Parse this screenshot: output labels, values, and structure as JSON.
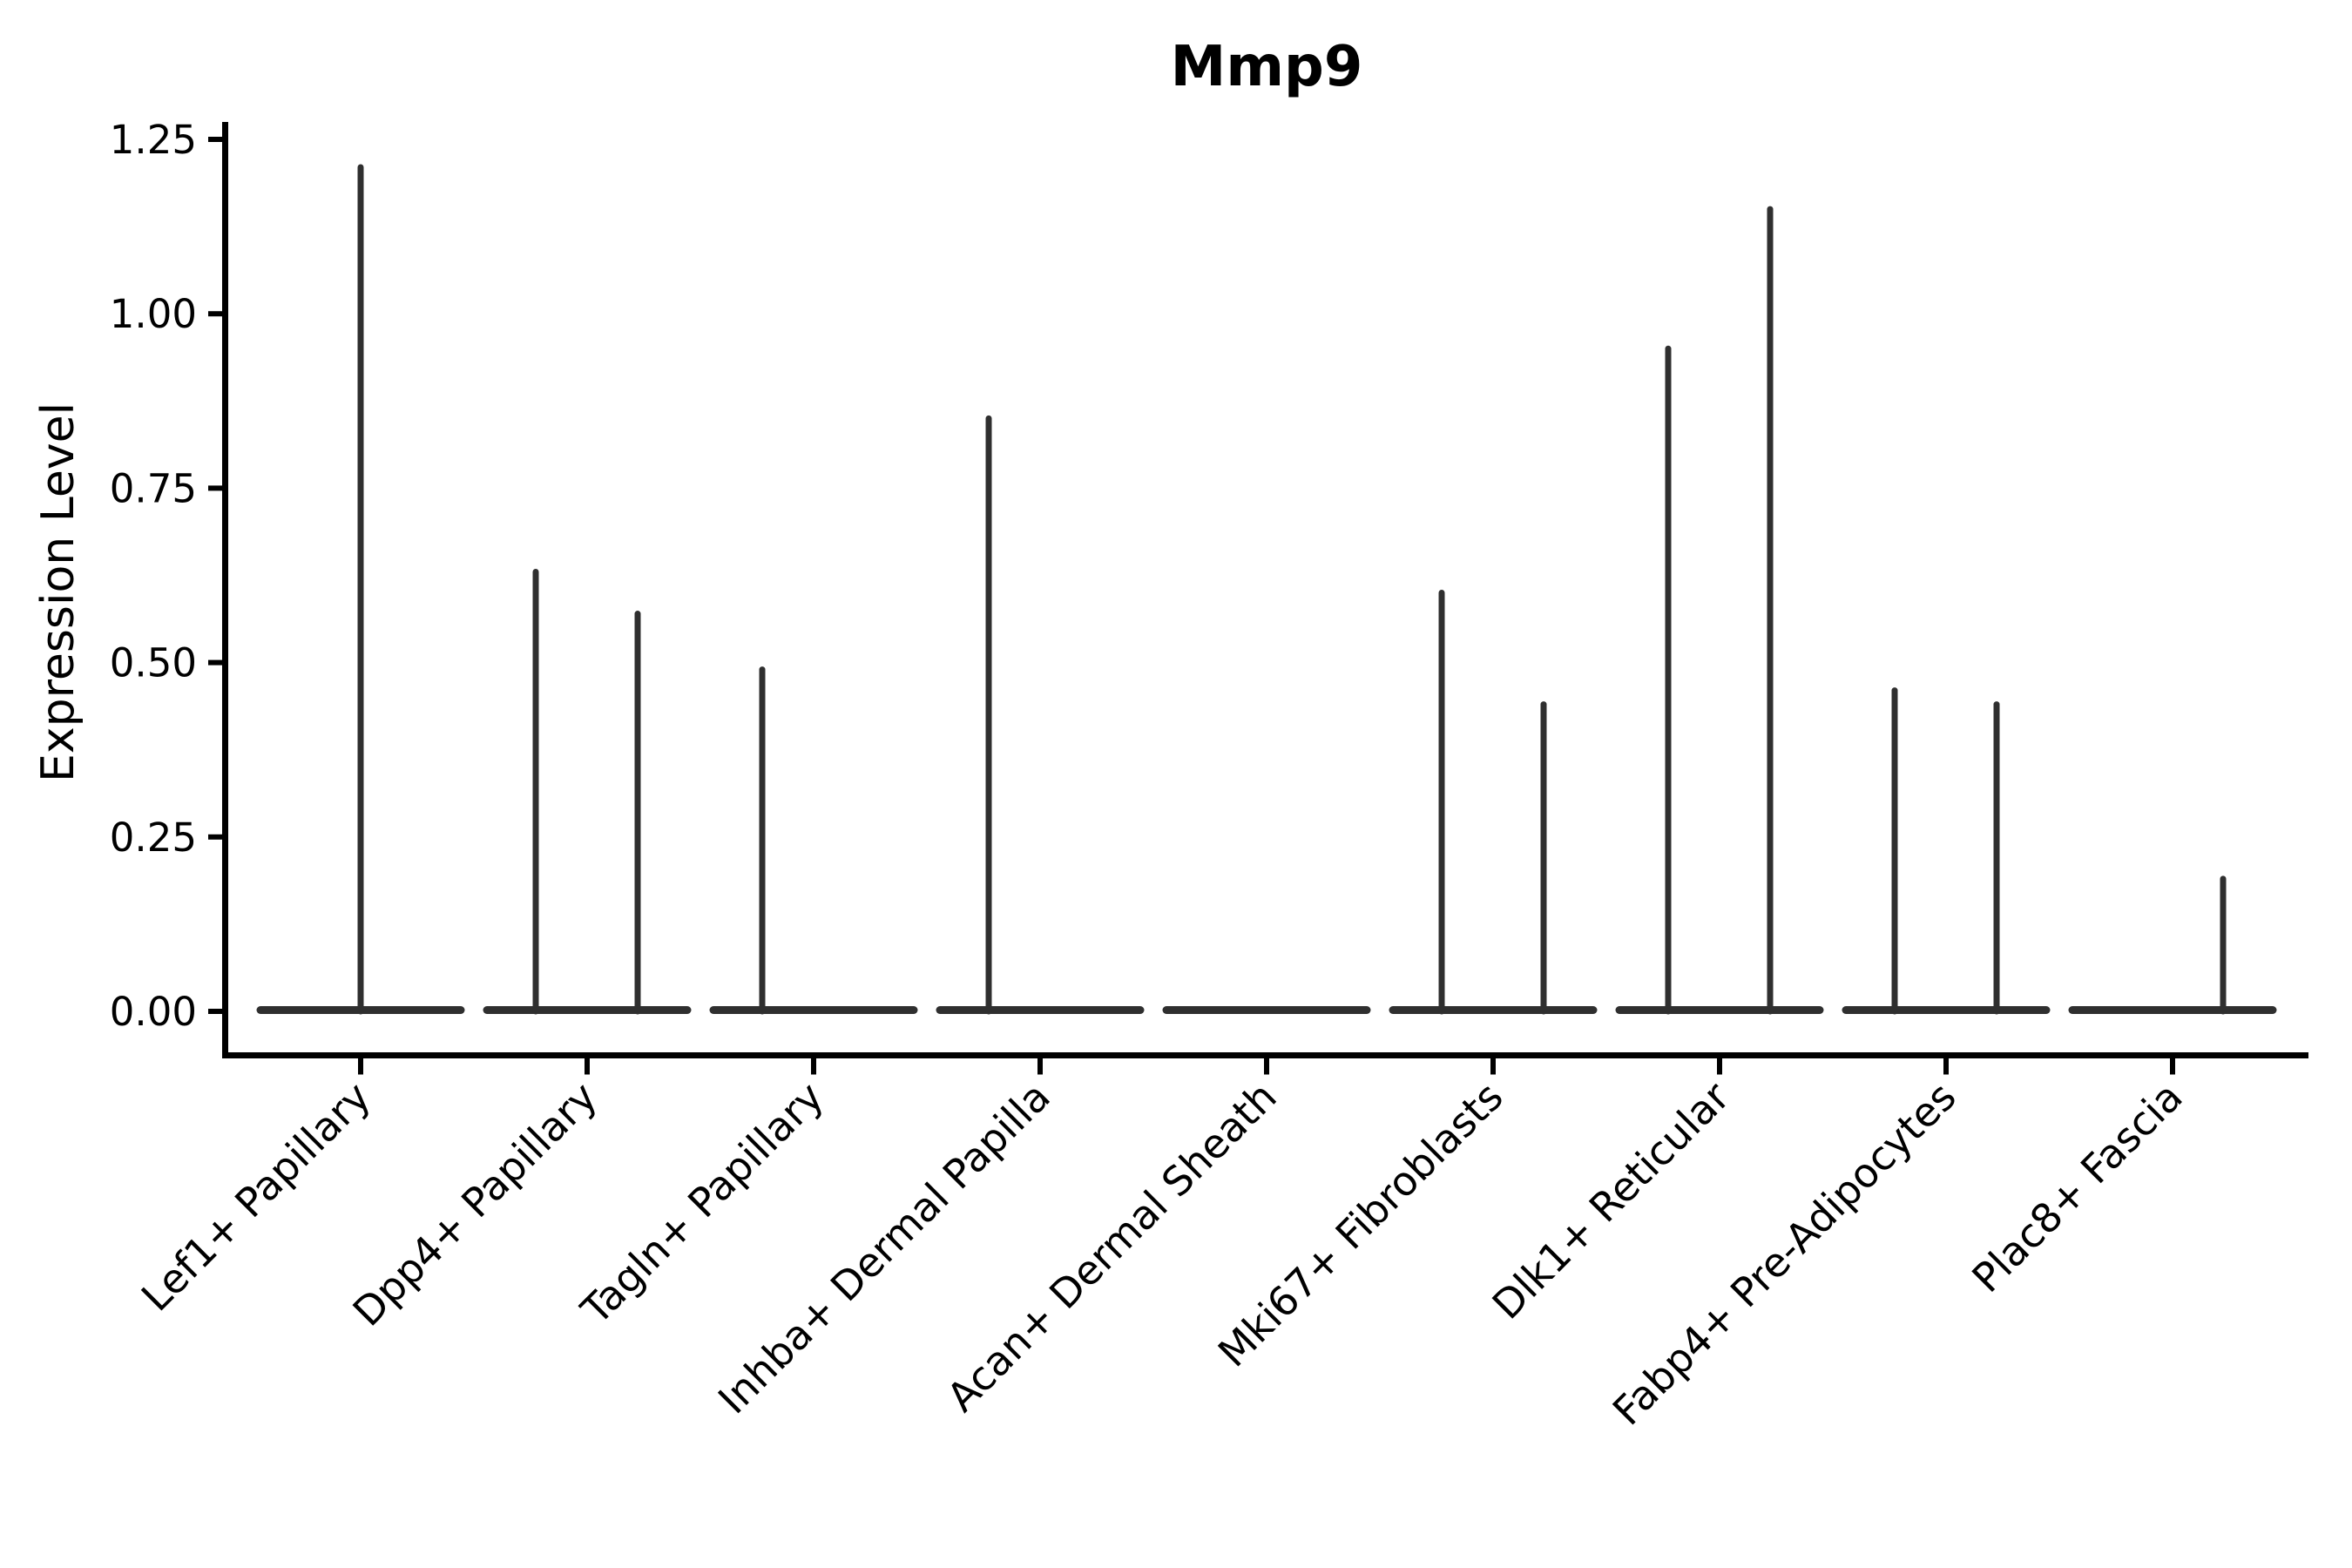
{
  "chart_data": {
    "type": "violin",
    "title": "Mmp9",
    "ylabel": "Expression Level",
    "xlabel": "",
    "ylim": [
      0,
      1.25
    ],
    "ytick_labels": [
      "0.00",
      "0.25",
      "0.50",
      "0.75",
      "1.00",
      "1.25"
    ],
    "ytick_values": [
      0,
      0.25,
      0.5,
      0.75,
      1.0,
      1.25
    ],
    "grid": "off",
    "legend": "none",
    "categories": [
      "Lef1+ Papillary",
      "Dpp4+ Papillary",
      "Tagln+ Papillary",
      "Inhba+ Dermal Papilla",
      "Acan+ Dermal Sheath",
      "Mki67+ Fibroblasts",
      "Dlk1+ Reticular",
      "Fabp4+ Pre-Adipocytes",
      "Plac8+ Fascia"
    ],
    "violins": [
      {
        "category": "Lef1+ Papillary",
        "side": "center",
        "max_expression": 1.21
      },
      {
        "category": "Dpp4+ Papillary",
        "side": "left",
        "max_expression": 0.63
      },
      {
        "category": "Dpp4+ Papillary",
        "side": "right",
        "max_expression": 0.57
      },
      {
        "category": "Tagln+ Papillary",
        "side": "left",
        "max_expression": 0.49
      },
      {
        "category": "Inhba+ Dermal Papilla",
        "side": "left",
        "max_expression": 0.85
      },
      {
        "category": "Acan+ Dermal Sheath",
        "side": "center",
        "max_expression": 0.0
      },
      {
        "category": "Mki67+ Fibroblasts",
        "side": "left",
        "max_expression": 0.6
      },
      {
        "category": "Mki67+ Fibroblasts",
        "side": "right",
        "max_expression": 0.44
      },
      {
        "category": "Dlk1+ Reticular",
        "side": "left",
        "max_expression": 0.95
      },
      {
        "category": "Dlk1+ Reticular",
        "side": "right",
        "max_expression": 1.15
      },
      {
        "category": "Fabp4+ Pre-Adipocytes",
        "side": "left",
        "max_expression": 0.46
      },
      {
        "category": "Fabp4+ Pre-Adipocytes",
        "side": "right",
        "max_expression": 0.44
      },
      {
        "category": "Plac8+ Fascia",
        "side": "right",
        "max_expression": 0.19
      }
    ],
    "colors": {
      "violin": "#2f2f2f",
      "axis": "#000000",
      "text": "#000000",
      "background": "#ffffff"
    }
  }
}
